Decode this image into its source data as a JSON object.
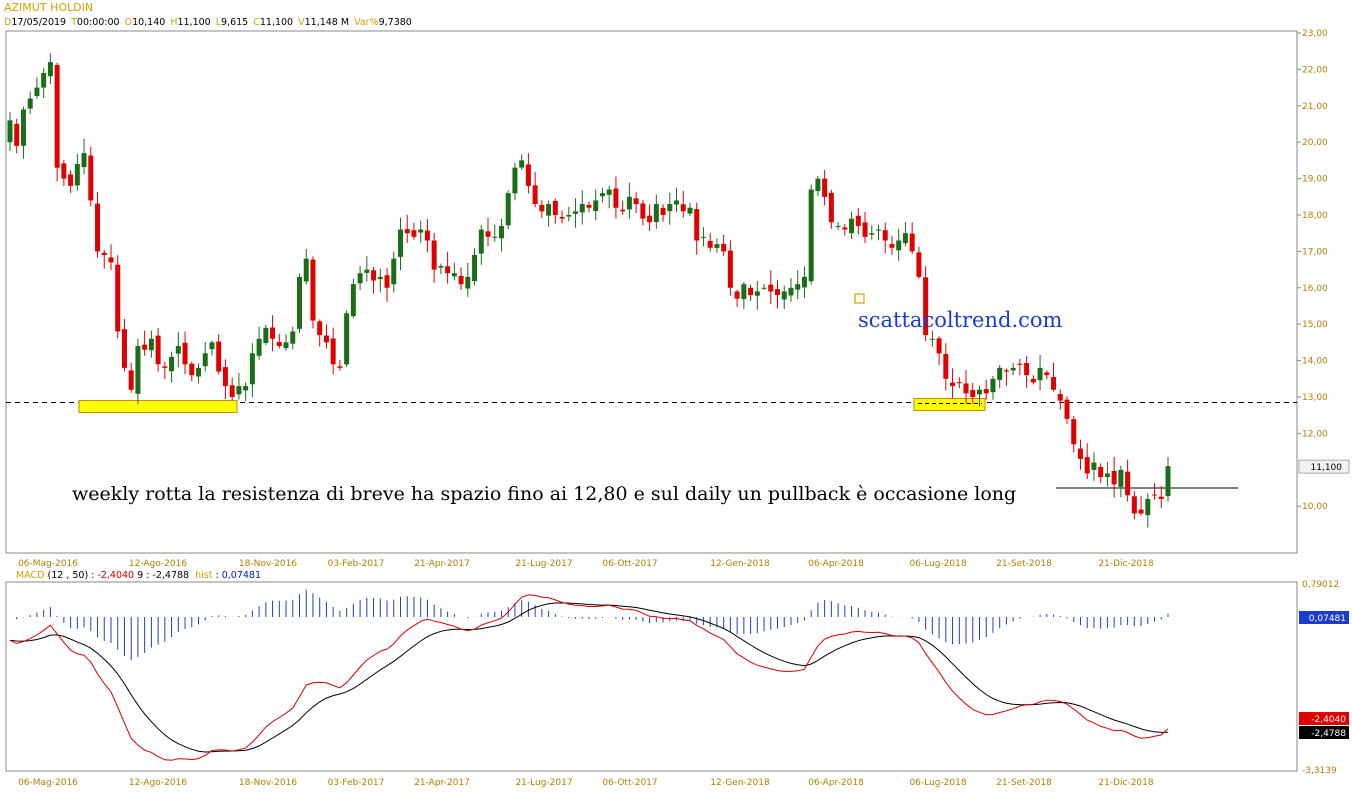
{
  "header": {
    "symbol": "AZIMUT HOLDIN",
    "fields": [
      {
        "k": "D",
        "v": "17/05/2019"
      },
      {
        "k": "T",
        "v": "00:00:00"
      },
      {
        "k": "O",
        "v": "10,140"
      },
      {
        "k": "H",
        "v": "11,100"
      },
      {
        "k": "L",
        "v": "9,615"
      },
      {
        "k": "C",
        "v": "11,100"
      },
      {
        "k": "V",
        "v": "11,148 M"
      },
      {
        "k": "Var%",
        "v": "9,7380"
      }
    ]
  },
  "macd_header": {
    "name": "MACD",
    "params": "(12 , 50)",
    "macd_value": "-2,4040",
    "signal_period": "9",
    "signal_value": "-2,4788",
    "hist_label": "hist",
    "hist_value": "0,07481"
  },
  "annotations": {
    "note": "weekly rotta la resistenza di breve ha spazio fino ai 12,80 e sul daily un pullback è occasione long",
    "watermark": "scattacoltrend.com",
    "price_tag": "11,100",
    "hist_tag": "0,07481",
    "macd_tag": "-2,4040",
    "signal_tag": "-2,4788"
  },
  "colors": {
    "up": "#1a6e1a",
    "down": "#e00000",
    "zone": "#ffff00",
    "hist": "#1f3fbf",
    "signal": "#000000",
    "macd": "#d40000"
  },
  "chart_data": [
    {
      "type": "candlestick",
      "title": "AZIMUT HOLDIN",
      "y_ticks": [
        "23,00",
        "22,00",
        "21,00",
        "20,00",
        "19,00",
        "18,00",
        "17,00",
        "16,00",
        "15,00",
        "14,00",
        "13,00",
        "12,00",
        "10,00"
      ],
      "ylim": [
        9,
        23
      ],
      "x_ticks": [
        "06-Mag-2016",
        "12-Ago-2016",
        "18-Nov-2016",
        "03-Feb-2017",
        "21-Apr-2017",
        "21-Lug-2017",
        "06-Ott-2017",
        "12-Gen-2018",
        "06-Apr-2018",
        "06-Lug-2018",
        "21-Set-2018",
        "21-Dic-2018"
      ],
      "resistance_level": 12.85,
      "short_resistance": 10.5,
      "closes": [
        20.6,
        19.9,
        20.9,
        21.2,
        21.5,
        21.9,
        22.2,
        19.3,
        19.0,
        18.8,
        19.4,
        19.7,
        18.4,
        17.0,
        16.9,
        16.7,
        14.8,
        13.8,
        13.2,
        14.4,
        14.3,
        14.6,
        13.9,
        13.8,
        14.1,
        14.4,
        13.9,
        13.6,
        13.8,
        14.2,
        14.5,
        13.7,
        13.3,
        13.0,
        13.3,
        13.3,
        14.2,
        14.6,
        14.9,
        14.6,
        14.4,
        14.5,
        14.8,
        16.3,
        16.8,
        15.1,
        14.7,
        14.5,
        13.9,
        13.8,
        15.3,
        16.1,
        16.4,
        16.5,
        16.2,
        16.3,
        16.0,
        16.8,
        17.6,
        17.5,
        17.4,
        17.6,
        17.3,
        16.5,
        16.6,
        16.4,
        16.4,
        16.1,
        16.3,
        16.9,
        17.6,
        17.4,
        17.4,
        17.7,
        18.6,
        19.3,
        19.5,
        18.8,
        18.3,
        18.1,
        18.3,
        18.0,
        17.9,
        18.0,
        18.1,
        18.3,
        18.2,
        18.4,
        18.6,
        18.7,
        18.2,
        18.1,
        18.5,
        18.3,
        17.9,
        17.8,
        18.3,
        18.0,
        18.3,
        18.4,
        18.1,
        18.2,
        17.3,
        17.4,
        17.1,
        17.2,
        17.0,
        16.0,
        15.7,
        16.1,
        15.8,
        15.9,
        16.0,
        15.9,
        15.8,
        15.9,
        16.0,
        16.1,
        16.3,
        18.7,
        19.0,
        18.5,
        17.8,
        17.7,
        17.6,
        17.9,
        17.7,
        17.4,
        17.5,
        17.6,
        17.3,
        17.1,
        17.3,
        17.5,
        17.0,
        16.3,
        14.7,
        14.6,
        14.2,
        13.5,
        13.3,
        13.4,
        13.1,
        13.0,
        13.2,
        13.1,
        13.5,
        13.8,
        13.7,
        13.8,
        13.9,
        13.6,
        13.4,
        13.8,
        13.6,
        13.2,
        12.9,
        12.4,
        11.7,
        11.3,
        10.9,
        11.2,
        10.8,
        10.9,
        10.6,
        11.0,
        10.3,
        9.8,
        9.8,
        10.2,
        10.3,
        10.2,
        11.1
      ],
      "candles_note": "weekly OHLC derived from closes",
      "macd": {
        "name": "MACD",
        "fast": 12,
        "slow": 50,
        "signal_period": 9,
        "macd_last": -2.404,
        "signal_last": -2.4788,
        "hist_last": 0.07481,
        "ylim": [
          -3.3139,
          0.79012
        ],
        "y_ticks": [
          "0,79012",
          "-3,3139"
        ]
      }
    }
  ]
}
